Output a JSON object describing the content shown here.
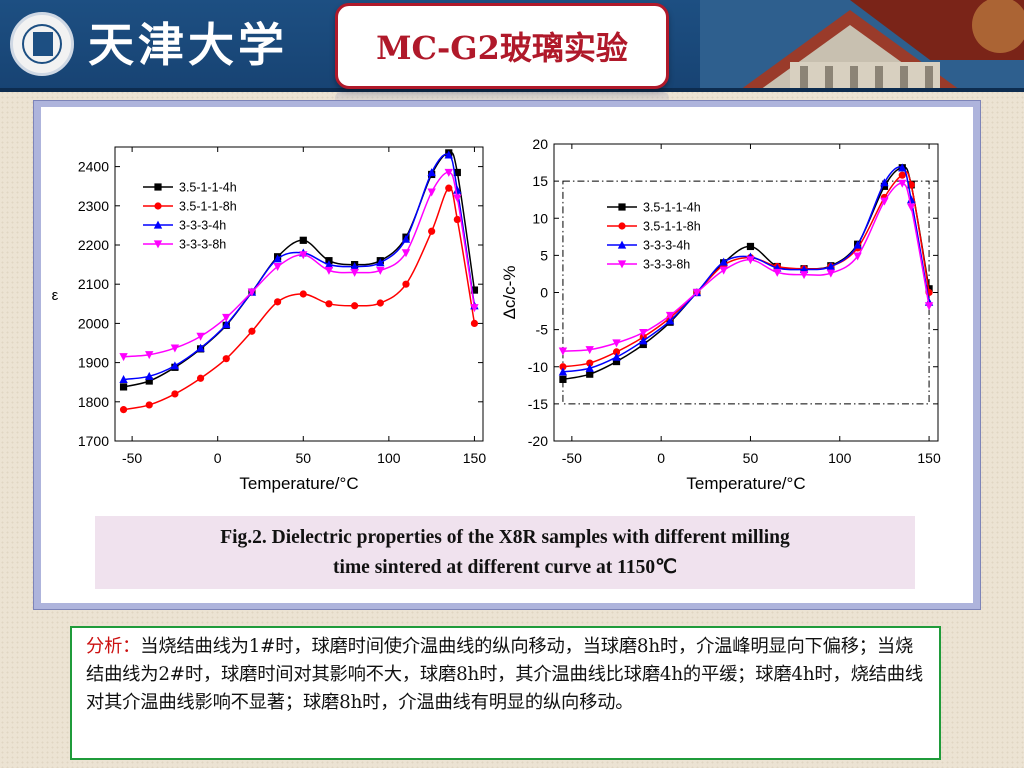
{
  "header": {
    "school_name": "天津大学",
    "slide_title": "MC-G2玻璃实验"
  },
  "chart_data": [
    {
      "type": "line",
      "xlabel": "Temperature/°C",
      "ylabel": "ε",
      "xlim": [
        -60,
        155
      ],
      "ylim": [
        1700,
        2450
      ],
      "xticks": [
        -50,
        0,
        50,
        100,
        150
      ],
      "yticks": [
        1700,
        1800,
        1900,
        2000,
        2100,
        2200,
        2300,
        2400
      ],
      "grid": false,
      "legend_position": "top-left",
      "x": [
        -55,
        -40,
        -25,
        -10,
        5,
        20,
        35,
        50,
        65,
        80,
        95,
        110,
        125,
        135,
        140,
        150
      ],
      "series": [
        {
          "name": "3.5-1-1-4h",
          "color": "#000000",
          "marker": "square",
          "values": [
            1838,
            1853,
            1888,
            1935,
            1995,
            2080,
            2170,
            2212,
            2160,
            2150,
            2160,
            2220,
            2380,
            2435,
            2385,
            2085
          ]
        },
        {
          "name": "3.5-1-1-8h",
          "color": "#ff0000",
          "marker": "circle",
          "values": [
            1780,
            1792,
            1820,
            1860,
            1910,
            1980,
            2055,
            2075,
            2050,
            2045,
            2052,
            2100,
            2235,
            2345,
            2265,
            2000
          ]
        },
        {
          "name": "3-3-3-4h",
          "color": "#0000ff",
          "marker": "triangle-up",
          "values": [
            1857,
            1865,
            1892,
            1937,
            1997,
            2080,
            2165,
            2180,
            2150,
            2145,
            2155,
            2215,
            2385,
            2430,
            2340,
            2045
          ]
        },
        {
          "name": "3-3-3-8h",
          "color": "#ff00ff",
          "marker": "triangle-down",
          "values": [
            1915,
            1920,
            1937,
            1967,
            2015,
            2080,
            2145,
            2175,
            2135,
            2130,
            2135,
            2180,
            2335,
            2385,
            2320,
            2040
          ]
        }
      ]
    },
    {
      "type": "line",
      "xlabel": "Temperature/°C",
      "ylabel": "Δc/c-%",
      "xlim": [
        -60,
        155
      ],
      "ylim": [
        -20,
        20
      ],
      "xticks": [
        -50,
        0,
        50,
        100,
        150
      ],
      "yticks": [
        -20,
        -15,
        -10,
        -5,
        0,
        5,
        10,
        15,
        20
      ],
      "grid": false,
      "legend_position": "top-left",
      "spec_box": {
        "x": [
          -55,
          150
        ],
        "y": [
          -15,
          15
        ]
      },
      "x": [
        -55,
        -40,
        -25,
        -10,
        5,
        20,
        35,
        50,
        65,
        80,
        95,
        110,
        125,
        135,
        140,
        150
      ],
      "series": [
        {
          "name": "3.5-1-1-4h",
          "color": "#000000",
          "marker": "square",
          "values": [
            -11.7,
            -11,
            -9.3,
            -7,
            -4,
            0,
            4,
            6.2,
            3.5,
            3.2,
            3.6,
            6.5,
            14.3,
            16.8,
            14.5,
            0.5
          ]
        },
        {
          "name": "3.5-1-1-8h",
          "color": "#ff0000",
          "marker": "circle",
          "values": [
            -10,
            -9.5,
            -8,
            -6,
            -3.4,
            0,
            3.7,
            4.7,
            3.5,
            3.2,
            3.5,
            6,
            12.8,
            15.8,
            14.5,
            0
          ]
        },
        {
          "name": "3-3-3-4h",
          "color": "#0000ff",
          "marker": "triangle-up",
          "values": [
            -10.7,
            -10.2,
            -8.7,
            -6.5,
            -3.8,
            0,
            4.1,
            4.8,
            3.3,
            3.1,
            3.5,
            6.4,
            14.8,
            16.8,
            12.5,
            -1.3
          ]
        },
        {
          "name": "3-3-3-8h",
          "color": "#ff00ff",
          "marker": "triangle-down",
          "values": [
            -7.9,
            -7.7,
            -6.8,
            -5.4,
            -3.1,
            0,
            3,
            4.4,
            2.7,
            2.4,
            2.6,
            4.9,
            12.3,
            14.7,
            11.5,
            -1.8
          ]
        }
      ]
    }
  ],
  "caption": {
    "line1": "Fig.2. Dielectric properties of the X8R samples  with different milling",
    "line2": "time sintered at different curve at 1150℃"
  },
  "analysis": {
    "label": "分析：",
    "text": "当烧结曲线为1#时，球磨时间使介温曲线的纵向移动，当球磨8h时，介温峰明显向下偏移；当烧结曲线为2#时，球磨时间对其影响不大，球磨8h时，其介温曲线比球磨4h的平缓；球磨4h时，烧结曲线对其介温曲线影响不显著；球磨8h时，介温曲线有明显的纵向移动。"
  },
  "colors": {
    "header_bg": "#1d4f82",
    "title_red": "#b0192a",
    "panel_frame": "#aeb4dc",
    "caption_bg": "#f0e2ee",
    "analysis_border": "#1f9b3a"
  }
}
